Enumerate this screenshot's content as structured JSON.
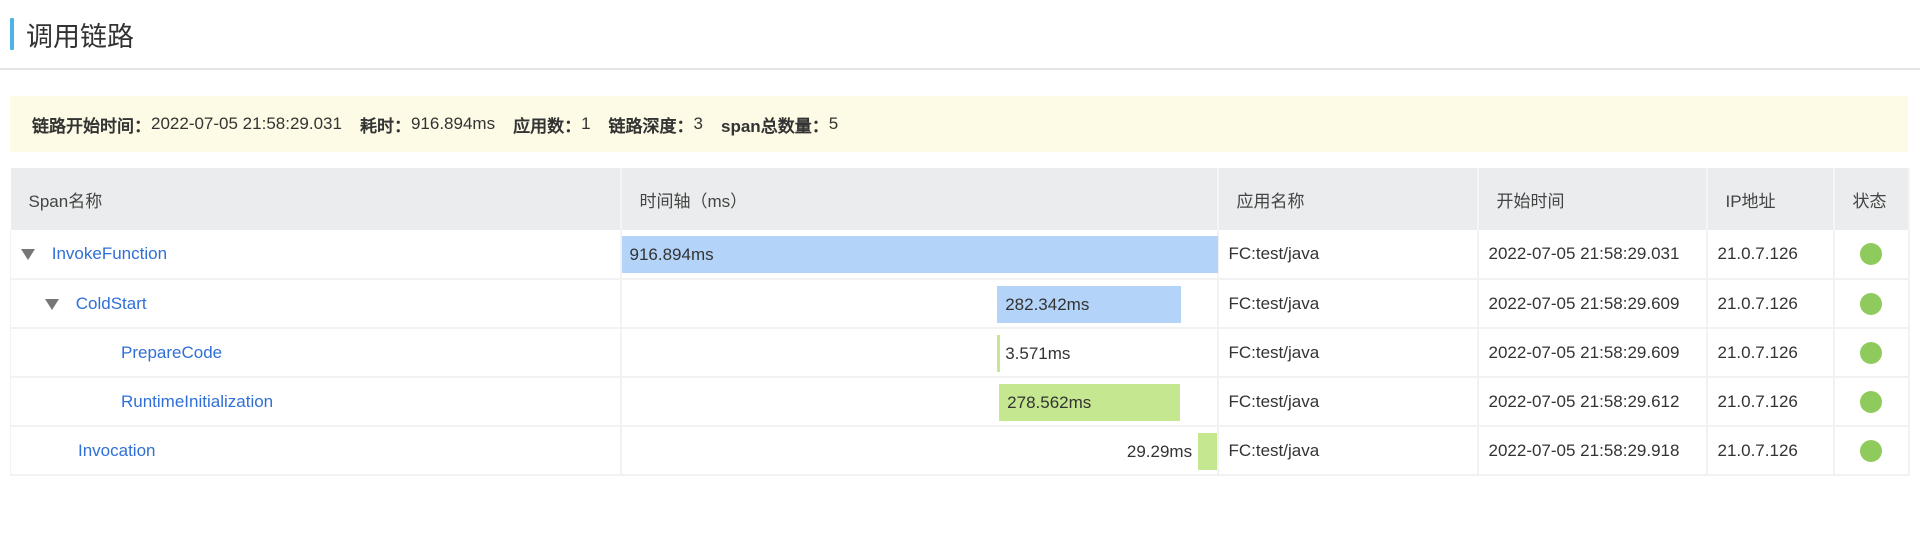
{
  "title": "调用链路",
  "summary": [
    {
      "label": "链路开始时间：",
      "value": "2022-07-05 21:58:29.031"
    },
    {
      "label": "耗时：",
      "value": "916.894ms"
    },
    {
      "label": "应用数：",
      "value": "1"
    },
    {
      "label": "链路深度：",
      "value": "3"
    },
    {
      "label": "span总数量：",
      "value": "5"
    }
  ],
  "columns": [
    "Span名称",
    "时间轴（ms）",
    "应用名称",
    "开始时间",
    "IP地址",
    "状态"
  ],
  "colors": {
    "parent_bar": "#b3d3f9",
    "leaf_bar": "#c5e78f",
    "status_ok": "#8fcb5c",
    "link": "#2f6fd6"
  },
  "rows": [
    {
      "name": "InvokeFunction",
      "depth": 0,
      "expanded": true,
      "duration_ms": 916.894,
      "duration": "916.894ms",
      "app": "FC:test/java",
      "start": "2022-07-05 21:58:29.031",
      "ip": "21.0.7.126",
      "status": "ok"
    },
    {
      "name": "ColdStart",
      "depth": 1,
      "expanded": true,
      "duration_ms": 282.342,
      "duration": "282.342ms",
      "app": "FC:test/java",
      "start": "2022-07-05 21:58:29.609",
      "ip": "21.0.7.126",
      "status": "ok"
    },
    {
      "name": "PrepareCode",
      "depth": 2,
      "duration_ms": 3.571,
      "duration": "3.571ms",
      "app": "FC:test/java",
      "start": "2022-07-05 21:58:29.609",
      "ip": "21.0.7.126",
      "status": "ok"
    },
    {
      "name": "RuntimeInitialization",
      "depth": 2,
      "duration_ms": 278.562,
      "duration": "278.562ms",
      "app": "FC:test/java",
      "start": "2022-07-05 21:58:29.612",
      "ip": "21.0.7.126",
      "status": "ok"
    },
    {
      "name": "Invocation",
      "depth": 1,
      "duration_ms": 29.29,
      "duration": "29.29ms",
      "app": "FC:test/java",
      "start": "2022-07-05 21:58:29.918",
      "ip": "21.0.7.126",
      "status": "ok"
    }
  ]
}
